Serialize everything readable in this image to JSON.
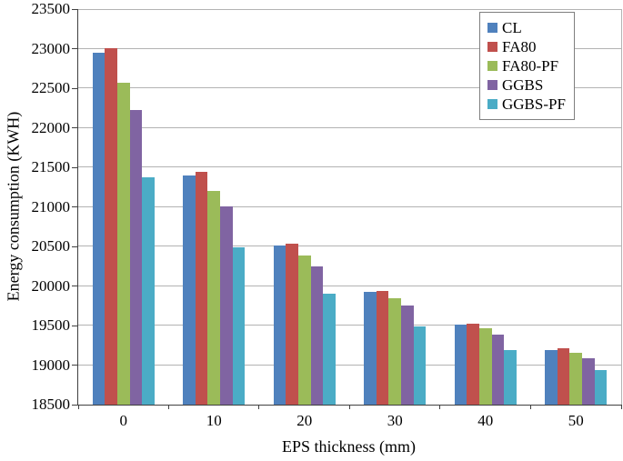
{
  "chart_data": {
    "type": "bar",
    "title": "",
    "xlabel": "EPS thickness (mm)",
    "ylabel": "Energy consumption (KWH)",
    "categories": [
      "0",
      "10",
      "20",
      "30",
      "40",
      "50"
    ],
    "series": [
      {
        "name": "CL",
        "color": "#4F81BD",
        "values": [
          22950,
          21400,
          20510,
          19930,
          19510,
          19190
        ]
      },
      {
        "name": "FA80",
        "color": "#C0504D",
        "values": [
          23010,
          21440,
          20530,
          19940,
          19520,
          19210
        ]
      },
      {
        "name": "FA80-PF",
        "color": "#9BBB59",
        "values": [
          22570,
          21200,
          20380,
          19840,
          19460,
          19150
        ]
      },
      {
        "name": "GGBS",
        "color": "#8064A2",
        "values": [
          22230,
          21010,
          20250,
          19750,
          19390,
          19090
        ]
      },
      {
        "name": "GGBS-PF",
        "color": "#4BACC6",
        "values": [
          21370,
          20490,
          19900,
          19490,
          19190,
          18940
        ]
      }
    ],
    "ylim": [
      18500,
      23500
    ],
    "yticks": [
      18500,
      19000,
      19500,
      20000,
      20500,
      21000,
      21500,
      22000,
      22500,
      23000,
      23500
    ],
    "grid": true,
    "legend_position": "top-right",
    "colors": {
      "axis_line": "#404040",
      "gridline": "#b3b3b3",
      "background": "#ffffff"
    }
  }
}
